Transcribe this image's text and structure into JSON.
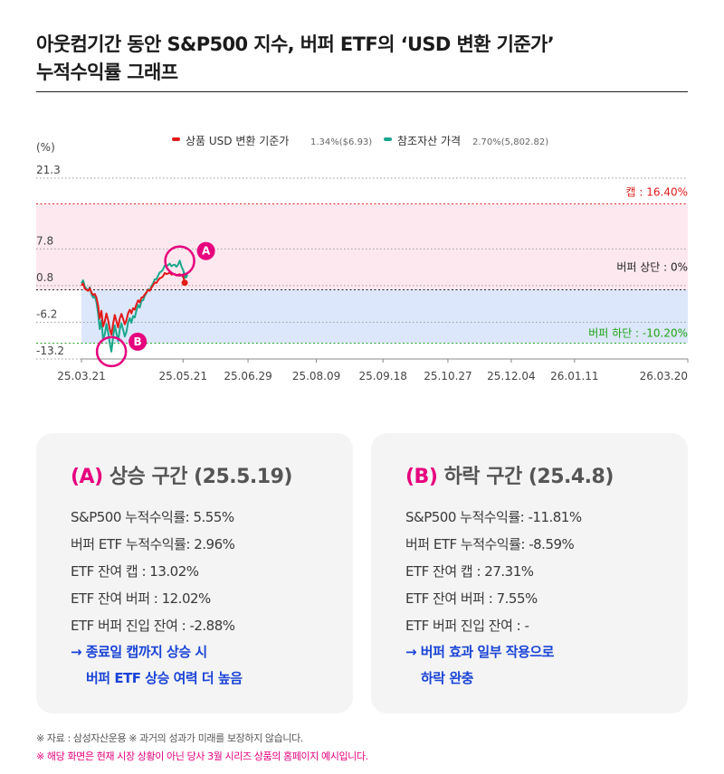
{
  "title_line1": "아웃컴기간 동안 S&P500 지수, 버퍼 ETF의 ‘USD 변환 기준가’",
  "title_line2": "누적수익률 그래프",
  "chart_data": {
    "type": "line",
    "ylabel": "(%)",
    "y_ticks": [
      21.3,
      7.8,
      0.8,
      -6.2,
      -13.2
    ],
    "y_tick_labels": [
      "21.3",
      "7.8",
      "0.8",
      "-6.2",
      "-13.2"
    ],
    "ylim": [
      -13.2,
      21.3
    ],
    "x_tick_labels": [
      "25.03.21",
      "25.05.21",
      "25.06.29",
      "25.08.09",
      "25.09.18",
      "25.10.27",
      "25.12.04",
      "26.01.11",
      "26.03.20"
    ],
    "x_tick_days": [
      0,
      61,
      100,
      141,
      181,
      220,
      258,
      296,
      364
    ],
    "xlim_days": [
      0,
      364
    ],
    "legend": [
      {
        "name": "상품 USD 변환 기준가",
        "detail": "1.34%($6.93)",
        "color": "#e31a1a"
      },
      {
        "name": "참조자산 가격",
        "detail": "2.70%(5,802.82)",
        "color": "#1aa78c"
      }
    ],
    "legend_position": "top-center",
    "levels": [
      {
        "label": "캡 : 16.40%",
        "value": 16.4,
        "color": "#e31a1a"
      },
      {
        "label": "버퍼 상단 : 0%",
        "value": 0,
        "color": "#222222"
      },
      {
        "label": "버퍼 하단 : -10.20%",
        "value": -10.2,
        "color": "#1fa314"
      }
    ],
    "annotations": [
      {
        "letter": "A",
        "day": 59,
        "value": 5.5
      },
      {
        "letter": "B",
        "day": 18,
        "value": -11.8
      }
    ],
    "series": [
      {
        "name": "상품 USD 변환 기준가",
        "color": "#e31a1a",
        "x": [
          0,
          1,
          2,
          3,
          4,
          5,
          6,
          7,
          8,
          9,
          10,
          11,
          12,
          13,
          14,
          15,
          16,
          17,
          18,
          19,
          20,
          21,
          22,
          23,
          24,
          25,
          26,
          27,
          28,
          29,
          30,
          31,
          32,
          33,
          34,
          35,
          36,
          37,
          38,
          39,
          40,
          41,
          42,
          43,
          44,
          45,
          46,
          47,
          48,
          49,
          50,
          51,
          52,
          53,
          54,
          55,
          56,
          57,
          58,
          59,
          60,
          61,
          62
        ],
        "y": [
          0.8,
          1.2,
          0.2,
          0.0,
          -0.2,
          0.3,
          -0.5,
          -1.0,
          -0.8,
          -1.5,
          -3.0,
          -5.5,
          -4.0,
          -7.0,
          -6.0,
          -4.5,
          -5.8,
          -7.5,
          -8.6,
          -6.5,
          -4.8,
          -6.0,
          -7.2,
          -5.5,
          -4.6,
          -5.5,
          -6.6,
          -5.8,
          -4.5,
          -3.8,
          -4.5,
          -3.5,
          -3.8,
          -2.8,
          -2.0,
          -2.4,
          -1.5,
          -1.4,
          -0.9,
          -0.5,
          0.0,
          -0.2,
          0.4,
          0.8,
          1.4,
          1.3,
          1.8,
          2.2,
          2.3,
          2.6,
          3.2,
          3.0,
          3.1,
          3.3,
          2.9,
          3.0,
          3.0,
          2.7,
          2.9,
          2.96,
          2.8,
          2.6,
          1.34
        ]
      },
      {
        "name": "참조자산 가격",
        "color": "#1aa78c",
        "x": [
          0,
          1,
          2,
          3,
          4,
          5,
          6,
          7,
          8,
          9,
          10,
          11,
          12,
          13,
          14,
          15,
          16,
          17,
          18,
          19,
          20,
          21,
          22,
          23,
          24,
          25,
          26,
          27,
          28,
          29,
          30,
          31,
          32,
          33,
          34,
          35,
          36,
          37,
          38,
          39,
          40,
          41,
          42,
          43,
          44,
          45,
          46,
          47,
          48,
          49,
          50,
          51,
          52,
          53,
          54,
          55,
          56,
          57,
          58,
          59,
          60,
          61,
          62
        ],
        "y": [
          1.2,
          1.8,
          0.6,
          0.2,
          -0.2,
          0.5,
          -0.8,
          -1.5,
          -1.2,
          -2.4,
          -4.5,
          -7.5,
          -5.8,
          -9.5,
          -8.5,
          -6.5,
          -8.2,
          -10.2,
          -11.81,
          -9.0,
          -6.8,
          -8.3,
          -9.8,
          -7.6,
          -6.4,
          -7.6,
          -8.9,
          -8.0,
          -6.3,
          -5.4,
          -6.3,
          -5.0,
          -5.3,
          -4.0,
          -2.9,
          -3.4,
          -2.1,
          -2.0,
          -1.2,
          -0.6,
          0.1,
          -0.1,
          0.7,
          1.2,
          2.0,
          2.0,
          2.7,
          3.3,
          3.5,
          3.9,
          4.6,
          4.5,
          4.7,
          5.0,
          4.5,
          4.7,
          4.8,
          4.4,
          4.8,
          5.55,
          4.5,
          3.8,
          2.7
        ]
      }
    ]
  },
  "panels": [
    {
      "letter": "(A)",
      "heading": "상승 구간 (25.5.19)",
      "lines": [
        "S&P500 누적수익률: 5.55%",
        "버퍼 ETF 누적수익률: 2.96%",
        "ETF 잔여 캡 : 13.02%",
        "ETF 잔여 버퍼 : 12.02%",
        "ETF 버퍼 진입 잔여 : -2.88%"
      ],
      "note1": "→ 종료일 캡까지 상승 시",
      "note2": "버퍼 ETF 상승 여력 더 높음"
    },
    {
      "letter": "(B)",
      "heading": "하락 구간 (25.4.8)",
      "lines": [
        "S&P500 누적수익률: -11.81%",
        "버퍼 ETF 누적수익률: -8.59%",
        "ETF 잔여 캡 : 27.31%",
        "ETF 잔여 버퍼 : 7.55%",
        "ETF 버퍼 진입 잔여 : -"
      ],
      "note1": "→ 버퍼 효과 일부 작용으로",
      "note2": "하락 완충"
    }
  ],
  "footnote1": "※ 자료 : 삼성자산운용 ※ 과거의 성과가 미래를 보장하지 않습니다.",
  "footnote2": "※ 해당 화면은 현재 시장 상황이 아닌 당사 3월 시리즈 상품의 홈페이지 예시입니다.",
  "colors": {
    "cap_band": "#fde8ef",
    "buffer_band": "#dce7fb",
    "accent": "#e6007e",
    "note_blue": "#1a44d6"
  }
}
